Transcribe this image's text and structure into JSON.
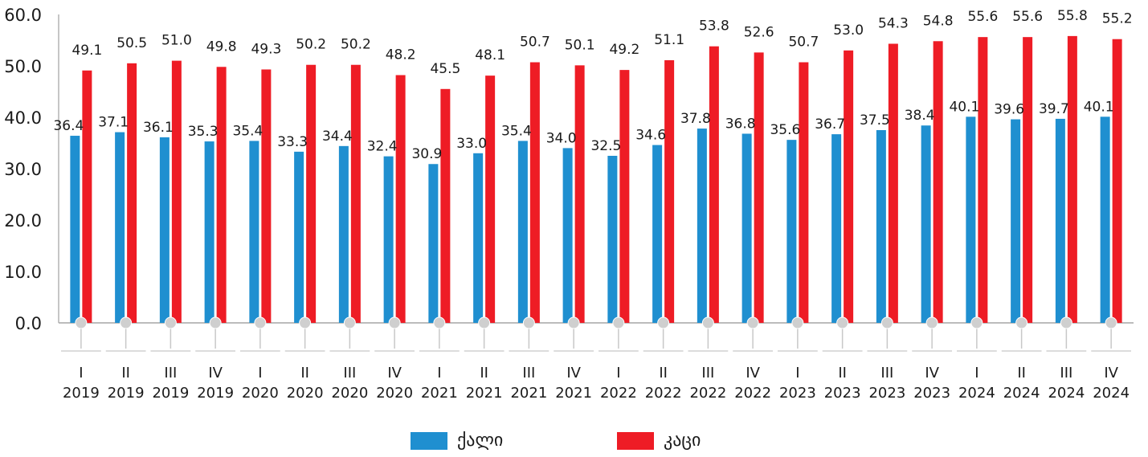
{
  "chart_data": {
    "type": "bar",
    "categories": [
      [
        "I",
        "2019"
      ],
      [
        "II",
        "2019"
      ],
      [
        "III",
        "2019"
      ],
      [
        "IV",
        "2019"
      ],
      [
        "I",
        "2020"
      ],
      [
        "II",
        "2020"
      ],
      [
        "III",
        "2020"
      ],
      [
        "IV",
        "2020"
      ],
      [
        "I",
        "2021"
      ],
      [
        "II",
        "2021"
      ],
      [
        "III",
        "2021"
      ],
      [
        "IV",
        "2021"
      ],
      [
        "I",
        "2022"
      ],
      [
        "II",
        "2022"
      ],
      [
        "III",
        "2022"
      ],
      [
        "IV",
        "2022"
      ],
      [
        "I",
        "2023"
      ],
      [
        "II",
        "2023"
      ],
      [
        "III",
        "2023"
      ],
      [
        "IV",
        "2023"
      ],
      [
        "I",
        "2024"
      ],
      [
        "II",
        "2024"
      ],
      [
        "III",
        "2024"
      ],
      [
        "IV",
        "2024"
      ]
    ],
    "series": [
      {
        "name": "ქალი",
        "color": "#1f8fd0",
        "values": [
          36.4,
          37.1,
          36.1,
          35.3,
          35.4,
          33.3,
          34.4,
          32.4,
          30.9,
          33.0,
          35.4,
          34.0,
          32.5,
          34.6,
          37.8,
          36.8,
          35.6,
          36.7,
          37.5,
          38.4,
          40.1,
          39.6,
          39.7,
          40.1
        ]
      },
      {
        "name": "კაცი",
        "color": "#ee1c25",
        "values": [
          49.1,
          50.5,
          51.0,
          49.8,
          49.3,
          50.2,
          50.2,
          48.2,
          45.5,
          48.1,
          50.7,
          50.1,
          49.2,
          51.1,
          53.8,
          52.6,
          50.7,
          53.0,
          54.3,
          54.8,
          55.6,
          55.6,
          55.8,
          55.2
        ]
      }
    ],
    "yticks": [
      "0.0",
      "10.0",
      "20.0",
      "30.0",
      "40.0",
      "50.0",
      "60.0"
    ],
    "ylim": [
      0,
      60
    ],
    "xlabel": "",
    "ylabel": "",
    "grid": false,
    "legend_position": "bottom-center",
    "value_decimals": 1
  }
}
